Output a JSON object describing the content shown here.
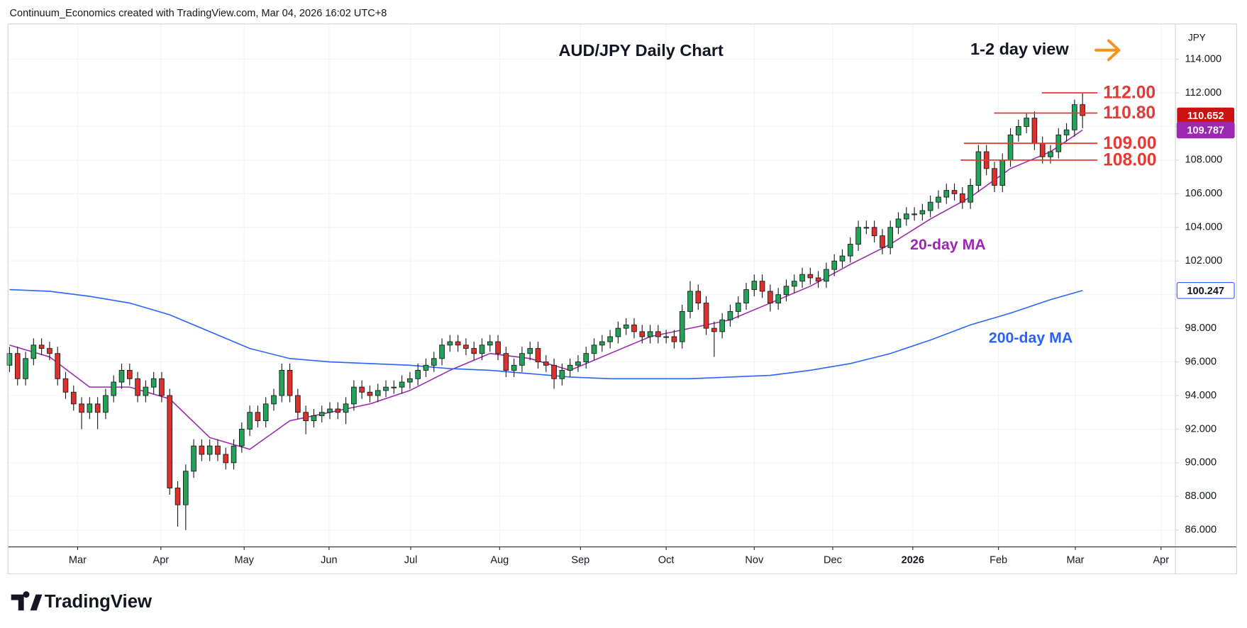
{
  "header": "Continuum_Economics created with TradingView.com, Mar 04, 2026 16:02 UTC+8",
  "footer": {
    "brand": "TradingView"
  },
  "chart_data": {
    "type": "candlestick",
    "title": "AUD/JPY Daily Chart",
    "subtitle": "1-2 day view",
    "currency": "JPY",
    "xlim": [
      -0.2,
      145.6
    ],
    "xticks": [
      {
        "value": 8.5,
        "label": "Mar"
      },
      {
        "value": 18.9,
        "label": "Apr"
      },
      {
        "value": 29.3,
        "label": "May"
      },
      {
        "value": 39.9,
        "label": "Jun"
      },
      {
        "value": 50.1,
        "label": "Jul"
      },
      {
        "value": 61.2,
        "label": "Aug"
      },
      {
        "value": 71.3,
        "label": "Sep"
      },
      {
        "value": 82.0,
        "label": "Oct"
      },
      {
        "value": 93.0,
        "label": "Nov"
      },
      {
        "value": 102.8,
        "label": "Dec"
      },
      {
        "value": 112.8,
        "label": "2026"
      },
      {
        "value": 123.5,
        "label": "Feb"
      },
      {
        "value": 133.1,
        "label": "Mar"
      },
      {
        "value": 143.8,
        "label": "Apr"
      }
    ],
    "ylim": [
      85.0,
      116.1
    ],
    "yticks": [
      {
        "value": 86,
        "label": "86.000"
      },
      {
        "value": 88,
        "label": "88.000"
      },
      {
        "value": 90,
        "label": "90.000"
      },
      {
        "value": 92,
        "label": "92.000"
      },
      {
        "value": 94,
        "label": "94.000"
      },
      {
        "value": 96,
        "label": "96.000"
      },
      {
        "value": 98,
        "label": "98.000"
      },
      {
        "value": 100,
        "label": "100.000"
      },
      {
        "value": 102,
        "label": "102.000"
      },
      {
        "value": 104,
        "label": "104.000"
      },
      {
        "value": 106,
        "label": "106.000"
      },
      {
        "value": 108,
        "label": "108.000"
      },
      {
        "value": 110,
        "label": "110.000"
      },
      {
        "value": 112,
        "label": "112.000"
      },
      {
        "value": 114,
        "label": "114.000"
      }
    ],
    "grid": true,
    "series": [
      {
        "type": "candlestick",
        "up_color": "#22a35a",
        "down_color": "#e0302c",
        "last_color": "#cc1111",
        "open": [
          95.8,
          96.5,
          95.0,
          96.2,
          97.0,
          96.8,
          96.5,
          95.0,
          94.2,
          93.5,
          93.0,
          93.5,
          93.0,
          94.0,
          94.8,
          95.5,
          95.0,
          94.0,
          94.5,
          95.0,
          94.0,
          88.5,
          87.5,
          89.5,
          91.0,
          90.5,
          91.0,
          90.5,
          90.0,
          91.0,
          92.0,
          93.0,
          92.5,
          93.5,
          94.0,
          95.5,
          94.0,
          93.0,
          92.5,
          92.8,
          93.0,
          93.2,
          93.0,
          93.5,
          94.5,
          94.2,
          94.0,
          94.3,
          94.5,
          94.5,
          94.8,
          95.0,
          95.5,
          95.8,
          96.2,
          97.0,
          97.2,
          97.0,
          96.8,
          96.5,
          97.0,
          97.2,
          96.5,
          95.5,
          95.8,
          96.5,
          96.8,
          96.0,
          95.8,
          95.0,
          95.5,
          95.8,
          96.0,
          96.5,
          97.0,
          97.2,
          97.5,
          98.0,
          98.2,
          97.8,
          97.5,
          97.8,
          97.5,
          97.5,
          97.2,
          99.0,
          100.2,
          99.5,
          98.0,
          97.8,
          98.5,
          99.0,
          99.5,
          100.3,
          100.8,
          100.2,
          99.5,
          100.0,
          100.5,
          100.8,
          101.2,
          101.0,
          100.8,
          101.5,
          102.0,
          102.3,
          103.0,
          104.0,
          104.0,
          103.5,
          102.8,
          104.0,
          104.5,
          104.8,
          104.8,
          105.0,
          105.5,
          105.8,
          106.2,
          106.0,
          105.5,
          106.5,
          108.5,
          107.5,
          106.5,
          108.0,
          109.5,
          110.0,
          110.5,
          109.0,
          108.2,
          108.5,
          109.5,
          109.8,
          111.3
        ],
        "high": [
          96.9,
          96.9,
          96.6,
          97.4,
          97.4,
          97.2,
          96.9,
          95.4,
          94.6,
          93.9,
          93.9,
          93.9,
          94.4,
          95.2,
          95.9,
          95.9,
          95.4,
          94.9,
          95.4,
          95.4,
          94.4,
          88.9,
          89.9,
          91.4,
          91.4,
          91.4,
          91.4,
          90.9,
          91.4,
          92.4,
          93.4,
          93.4,
          93.9,
          94.4,
          95.9,
          95.9,
          94.4,
          93.4,
          93.2,
          93.4,
          93.6,
          93.6,
          93.9,
          94.9,
          94.9,
          94.6,
          94.7,
          94.9,
          94.9,
          95.2,
          95.4,
          95.9,
          96.2,
          96.6,
          97.4,
          97.6,
          97.6,
          97.4,
          97.2,
          97.4,
          97.6,
          97.6,
          96.9,
          96.2,
          96.9,
          97.2,
          97.2,
          96.4,
          96.2,
          95.9,
          96.2,
          96.4,
          96.9,
          97.4,
          97.6,
          97.9,
          98.4,
          98.6,
          98.6,
          98.2,
          98.2,
          98.2,
          97.9,
          97.9,
          99.4,
          100.8,
          100.6,
          99.9,
          98.4,
          98.9,
          99.4,
          99.9,
          100.7,
          101.2,
          101.2,
          100.6,
          100.4,
          100.9,
          101.2,
          101.6,
          101.6,
          101.4,
          101.9,
          102.4,
          102.7,
          103.4,
          104.4,
          104.4,
          104.4,
          103.9,
          104.4,
          104.9,
          105.2,
          105.2,
          105.4,
          105.9,
          106.2,
          106.6,
          106.6,
          106.4,
          106.9,
          108.9,
          108.9,
          107.9,
          108.4,
          109.9,
          110.4,
          110.8,
          110.9,
          109.4,
          108.9,
          109.9,
          110.2,
          111.6,
          112.0
        ],
        "low": [
          95.4,
          94.6,
          94.6,
          95.8,
          96.4,
          96.1,
          94.6,
          93.8,
          93.1,
          92.0,
          92.6,
          92.0,
          92.6,
          93.6,
          94.4,
          94.6,
          93.6,
          93.6,
          94.1,
          93.6,
          88.1,
          86.2,
          86.0,
          89.1,
          90.1,
          90.1,
          90.1,
          89.6,
          89.6,
          90.6,
          91.6,
          92.1,
          92.1,
          93.1,
          93.6,
          93.6,
          92.6,
          91.7,
          92.1,
          92.4,
          92.6,
          92.6,
          92.3,
          93.1,
          93.8,
          93.6,
          93.6,
          93.9,
          94.1,
          94.1,
          94.4,
          94.6,
          95.1,
          95.4,
          95.8,
          96.6,
          96.6,
          96.4,
          96.1,
          96.1,
          96.6,
          96.1,
          95.1,
          95.1,
          95.4,
          96.1,
          95.6,
          95.4,
          94.4,
          94.6,
          95.1,
          95.4,
          95.6,
          96.1,
          96.6,
          96.8,
          97.1,
          97.6,
          97.4,
          97.1,
          97.1,
          97.1,
          97.1,
          96.8,
          96.8,
          98.6,
          99.1,
          97.6,
          96.3,
          97.4,
          98.1,
          98.6,
          99.1,
          99.9,
          99.8,
          99.0,
          99.1,
          99.6,
          100.1,
          100.4,
          100.6,
          100.4,
          100.4,
          101.1,
          101.6,
          101.9,
          102.6,
          103.6,
          103.1,
          102.4,
          102.4,
          103.6,
          104.1,
          104.4,
          104.4,
          104.6,
          105.1,
          105.4,
          105.6,
          105.1,
          105.1,
          106.1,
          107.1,
          106.1,
          106.1,
          107.6,
          109.1,
          109.6,
          108.6,
          107.8,
          107.8,
          108.1,
          109.1,
          109.4,
          109.9
        ],
        "close": [
          96.5,
          95.0,
          96.2,
          97.0,
          96.8,
          96.5,
          95.0,
          94.2,
          93.5,
          93.0,
          93.5,
          93.0,
          94.0,
          94.8,
          95.5,
          95.0,
          94.0,
          94.5,
          95.0,
          94.0,
          88.5,
          87.5,
          89.5,
          91.0,
          90.5,
          91.0,
          90.5,
          90.0,
          91.0,
          92.0,
          93.0,
          92.5,
          93.5,
          94.0,
          95.5,
          94.0,
          93.0,
          92.5,
          92.8,
          93.0,
          93.2,
          93.0,
          93.5,
          94.5,
          94.2,
          94.0,
          94.3,
          94.5,
          94.5,
          94.8,
          95.0,
          95.5,
          95.8,
          96.2,
          97.0,
          97.2,
          97.0,
          96.8,
          96.5,
          97.0,
          97.2,
          96.5,
          95.5,
          95.8,
          96.5,
          96.8,
          96.0,
          95.8,
          95.0,
          95.5,
          95.8,
          96.0,
          96.5,
          97.0,
          97.2,
          97.5,
          98.0,
          98.2,
          97.8,
          97.5,
          97.8,
          97.5,
          97.5,
          97.2,
          99.0,
          100.2,
          99.5,
          98.0,
          97.8,
          98.5,
          99.0,
          99.5,
          100.3,
          100.8,
          100.2,
          99.5,
          100.0,
          100.5,
          100.8,
          101.2,
          101.0,
          100.8,
          101.5,
          102.0,
          102.3,
          103.0,
          104.0,
          104.0,
          103.5,
          102.8,
          104.0,
          104.5,
          104.8,
          104.8,
          105.0,
          105.5,
          105.8,
          106.2,
          106.0,
          105.5,
          106.5,
          108.5,
          107.5,
          106.5,
          108.0,
          109.5,
          110.0,
          110.5,
          109.0,
          108.2,
          108.5,
          109.5,
          109.8,
          111.3,
          110.652
        ]
      },
      {
        "type": "line",
        "name": "20-day MA",
        "color": "#9c27b0",
        "x": [
          0,
          5,
          10,
          15,
          20,
          25,
          30,
          35,
          40,
          45,
          50,
          55,
          60,
          65,
          70,
          75,
          80,
          85,
          90,
          95,
          100,
          105,
          110,
          115,
          120,
          125,
          130,
          134
        ],
        "values": [
          97,
          96.3,
          94.5,
          94.5,
          93.8,
          91.5,
          90.8,
          92.5,
          93,
          93.5,
          94.3,
          95.5,
          96.5,
          96.2,
          95.5,
          96.5,
          97.5,
          98,
          98.5,
          99.5,
          100.5,
          101.8,
          103,
          104.5,
          105.8,
          107.5,
          108.5,
          109.787
        ]
      },
      {
        "type": "line",
        "name": "200-day MA",
        "color": "#2962ff",
        "x": [
          0,
          5,
          10,
          15,
          20,
          25,
          30,
          35,
          40,
          45,
          50,
          55,
          60,
          65,
          70,
          75,
          80,
          85,
          90,
          95,
          100,
          105,
          110,
          115,
          120,
          125,
          130,
          134
        ],
        "values": [
          100.3,
          100.2,
          99.9,
          99.5,
          98.8,
          97.8,
          96.8,
          96.2,
          96.0,
          95.9,
          95.8,
          95.6,
          95.5,
          95.3,
          95.1,
          95.0,
          95.0,
          95.0,
          95.1,
          95.2,
          95.5,
          95.9,
          96.5,
          97.3,
          98.2,
          98.9,
          99.7,
          100.247
        ]
      }
    ],
    "levels": [
      {
        "value": 112,
        "label": "112.00"
      },
      {
        "value": 110.8,
        "label": "110.80"
      },
      {
        "value": 109,
        "label": "109.00"
      },
      {
        "value": 108,
        "label": "108.00"
      }
    ],
    "level_color": "#e53935"
  }
}
